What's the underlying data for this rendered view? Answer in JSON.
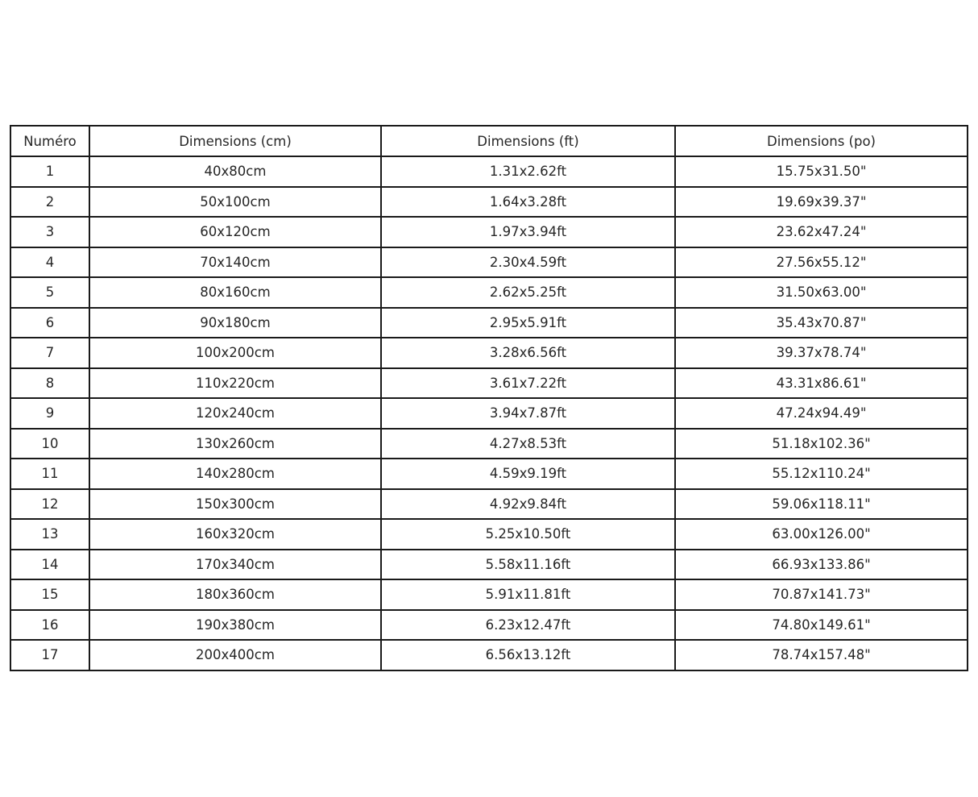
{
  "chart_data": {
    "type": "table",
    "title": "",
    "columns": [
      "Numéro",
      "Dimensions (cm)",
      "Dimensions (ft)",
      "Dimensions (po)"
    ],
    "rows": [
      [
        "1",
        "40x80cm",
        "1.31x2.62ft",
        "15.75x31.50\""
      ],
      [
        "2",
        "50x100cm",
        "1.64x3.28ft",
        "19.69x39.37\""
      ],
      [
        "3",
        "60x120cm",
        "1.97x3.94ft",
        "23.62x47.24\""
      ],
      [
        "4",
        "70x140cm",
        "2.30x4.59ft",
        "27.56x55.12\""
      ],
      [
        "5",
        "80x160cm",
        "2.62x5.25ft",
        "31.50x63.00\""
      ],
      [
        "6",
        "90x180cm",
        "2.95x5.91ft",
        "35.43x70.87\""
      ],
      [
        "7",
        "100x200cm",
        "3.28x6.56ft",
        "39.37x78.74\""
      ],
      [
        "8",
        "110x220cm",
        "3.61x7.22ft",
        "43.31x86.61\""
      ],
      [
        "9",
        "120x240cm",
        "3.94x7.87ft",
        "47.24x94.49\""
      ],
      [
        "10",
        "130x260cm",
        "4.27x8.53ft",
        "51.18x102.36\""
      ],
      [
        "11",
        "140x280cm",
        "4.59x9.19ft",
        "55.12x110.24\""
      ],
      [
        "12",
        "150x300cm",
        "4.92x9.84ft",
        "59.06x118.11\""
      ],
      [
        "13",
        "160x320cm",
        "5.25x10.50ft",
        "63.00x126.00\""
      ],
      [
        "14",
        "170x340cm",
        "5.58x11.16ft",
        "66.93x133.86\""
      ],
      [
        "15",
        "180x360cm",
        "5.91x11.81ft",
        "70.87x141.73\""
      ],
      [
        "16",
        "190x380cm",
        "6.23x12.47ft",
        "74.80x149.61\""
      ],
      [
        "17",
        "200x400cm",
        "6.56x13.12ft",
        "78.74x157.48\""
      ]
    ],
    "layout": {
      "border_color": "#1a1a1a",
      "text_color": "#262626",
      "background": "#ffffff",
      "grid": true,
      "legend_position": "none"
    }
  }
}
